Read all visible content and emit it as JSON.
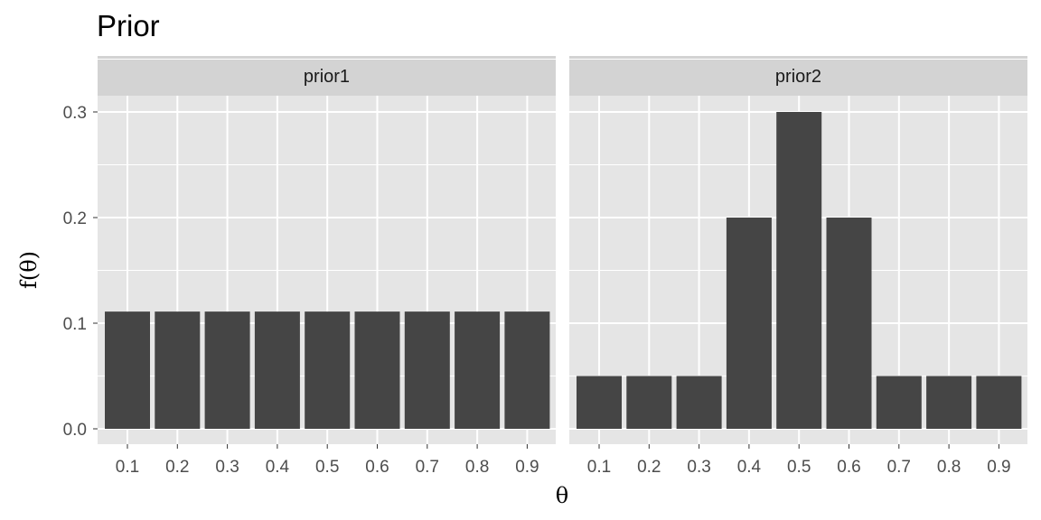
{
  "chart_data": {
    "type": "bar",
    "title": "Prior",
    "xlabel": "θ",
    "ylabel": "f(θ)",
    "ylim": [
      0,
      0.35
    ],
    "yticks": [
      "0.0",
      "0.1",
      "0.2",
      "0.3"
    ],
    "ytick_values": [
      0,
      0.1,
      0.2,
      0.3
    ],
    "grid": true,
    "categories": [
      "0.1",
      "0.2",
      "0.3",
      "0.4",
      "0.5",
      "0.6",
      "0.7",
      "0.8",
      "0.9"
    ],
    "panels": [
      {
        "name": "prior1",
        "values": [
          0.111,
          0.111,
          0.111,
          0.111,
          0.111,
          0.111,
          0.111,
          0.111,
          0.111
        ]
      },
      {
        "name": "prior2",
        "values": [
          0.05,
          0.05,
          0.05,
          0.2,
          0.3,
          0.2,
          0.05,
          0.05,
          0.05
        ]
      }
    ],
    "colors": {
      "bar": "#454545",
      "panel_background": "#e5e5e5",
      "strip_background": "#d3d3d3",
      "grid": "#ffffff"
    }
  }
}
